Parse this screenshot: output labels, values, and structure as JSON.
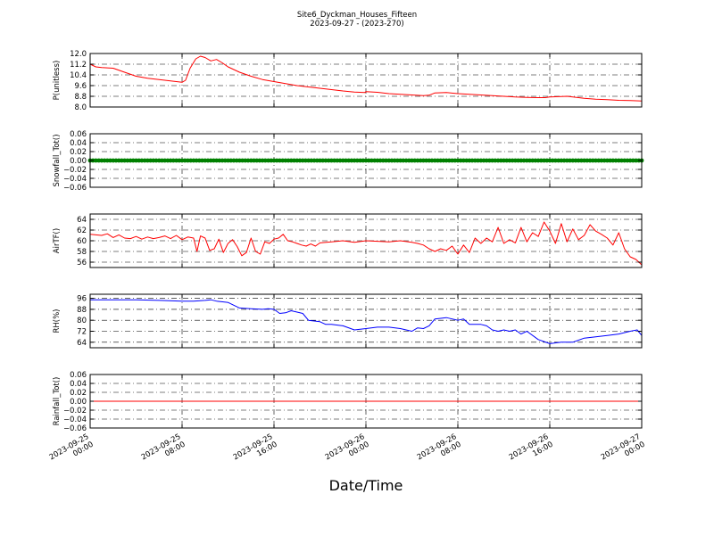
{
  "figure": {
    "title_line1": "Site6_Dyckman_Houses_Fifteen",
    "title_line2": "2023-09-27 - (2023-270)",
    "xlabel": "Date/Time",
    "x_tick_labels": [
      [
        "2023-09-25",
        "00:00"
      ],
      [
        "2023-09-25",
        "08:00"
      ],
      [
        "2023-09-25",
        "16:00"
      ],
      [
        "2023-09-26",
        "00:00"
      ],
      [
        "2023-09-26",
        "08:00"
      ],
      [
        "2023-09-26",
        "16:00"
      ],
      [
        "2023-09-27",
        "00:00"
      ]
    ]
  },
  "chart_data": [
    {
      "type": "line",
      "ylabel": "P(unitless)",
      "color": "#ff0000",
      "ylim": [
        8.0,
        12.0
      ],
      "yticks": [
        8.0,
        8.8,
        9.6,
        10.4,
        11.2,
        12.0
      ],
      "ytick_labels": [
        "8.0",
        "8.8",
        "9.6",
        "10.4",
        "11.2",
        "12.0"
      ],
      "xlim": [
        0,
        48
      ],
      "grid": true,
      "x": [
        0,
        0.5,
        1,
        2,
        3,
        4,
        5,
        6,
        7,
        8,
        8.3,
        8.7,
        9.2,
        9.6,
        10,
        10.5,
        11,
        11.5,
        12,
        13,
        14,
        15,
        16,
        17,
        18,
        19,
        20,
        21,
        22,
        23,
        23.9,
        24,
        25,
        26,
        27,
        28,
        29,
        29.5,
        30,
        31,
        32,
        33,
        34,
        35,
        36,
        37,
        38,
        39,
        39.6,
        40,
        41,
        41.5,
        42,
        43,
        44,
        45,
        46,
        47,
        48
      ],
      "y": [
        11.2,
        11.0,
        10.95,
        10.9,
        10.6,
        10.3,
        10.15,
        10.05,
        9.95,
        9.85,
        10.0,
        10.9,
        11.6,
        11.8,
        11.7,
        11.45,
        11.55,
        11.3,
        11.0,
        10.6,
        10.3,
        10.05,
        9.9,
        9.75,
        9.6,
        9.5,
        9.4,
        9.3,
        9.2,
        9.12,
        9.08,
        9.15,
        9.1,
        9.0,
        8.95,
        8.9,
        8.85,
        8.88,
        9.05,
        9.08,
        9.0,
        8.95,
        8.9,
        8.85,
        8.8,
        8.75,
        8.72,
        8.7,
        8.7,
        8.75,
        8.78,
        8.8,
        8.75,
        8.65,
        8.58,
        8.55,
        8.5,
        8.48,
        8.45
      ]
    },
    {
      "type": "scatter",
      "ylabel": "Snowfall_Tot()",
      "color": "#008000",
      "ylim": [
        -0.06,
        0.06
      ],
      "yticks": [
        -0.06,
        -0.04,
        -0.02,
        0.0,
        0.02,
        0.04,
        0.06
      ],
      "ytick_labels": [
        "−0.06",
        "−0.04",
        "−0.02",
        "0.00",
        "0.02",
        "0.04",
        "0.06"
      ],
      "xlim": [
        0,
        48
      ],
      "grid": true,
      "x_start": 0,
      "x_end": 48,
      "x_step": 0.25,
      "constant_value": 0.0
    },
    {
      "type": "line",
      "ylabel": "AirTF()",
      "color": "#ff0000",
      "ylim": [
        55,
        65
      ],
      "yticks": [
        56,
        58,
        60,
        62,
        64
      ],
      "ytick_labels": [
        "56",
        "58",
        "60",
        "62",
        "64"
      ],
      "xlim": [
        0,
        48
      ],
      "grid": true,
      "x": [
        0,
        1,
        1.5,
        2,
        2.5,
        3,
        3.5,
        4,
        4.5,
        5,
        5.5,
        6,
        6.5,
        7,
        7.5,
        8,
        8.5,
        9,
        9.3,
        9.6,
        10,
        10.4,
        10.8,
        11.2,
        11.6,
        12,
        12.4,
        12.8,
        13.2,
        13.6,
        14,
        14.4,
        14.8,
        15.2,
        15.6,
        16,
        16.4,
        16.8,
        17.2,
        17.6,
        18,
        18.4,
        18.8,
        19.2,
        19.6,
        20,
        21,
        22,
        23,
        24,
        25,
        26,
        27,
        28,
        28.5,
        29,
        29.5,
        30,
        30.5,
        31,
        31.5,
        32,
        32.5,
        33,
        33.5,
        34,
        34.5,
        35,
        35.5,
        36,
        36.5,
        37,
        37.5,
        38,
        38.5,
        39,
        39.5,
        40,
        40.5,
        41,
        41.5,
        42,
        42.5,
        43,
        43.5,
        44,
        44.5,
        45,
        45.5,
        46,
        46.5,
        47,
        47.5,
        48
      ],
      "y": [
        61.2,
        61.0,
        61.3,
        60.6,
        61.1,
        60.5,
        60.4,
        60.8,
        60.3,
        60.7,
        60.4,
        60.6,
        60.9,
        60.4,
        61.0,
        60.2,
        60.7,
        60.5,
        58.0,
        60.9,
        60.5,
        58.2,
        58.5,
        60.3,
        57.8,
        59.5,
        60.2,
        58.9,
        57.2,
        57.8,
        60.5,
        58.0,
        57.5,
        59.8,
        59.5,
        60.3,
        60.5,
        61.2,
        60.0,
        59.8,
        59.5,
        59.2,
        59.0,
        59.4,
        59.0,
        59.6,
        59.8,
        60.0,
        59.7,
        60.0,
        59.9,
        59.8,
        60.0,
        59.7,
        59.5,
        59.2,
        58.5,
        58.0,
        58.5,
        58.2,
        59.0,
        57.5,
        59.2,
        57.8,
        60.5,
        59.5,
        60.5,
        59.8,
        62.5,
        59.5,
        60.2,
        59.6,
        62.5,
        59.8,
        61.5,
        60.8,
        63.5,
        61.8,
        59.5,
        63.2,
        59.8,
        62.2,
        60.2,
        61.0,
        63.0,
        61.8,
        61.2,
        60.5,
        59.2,
        61.5,
        58.5,
        57.0,
        56.5,
        55.5
      ]
    },
    {
      "type": "line",
      "ylabel": "RH(%)",
      "color": "#0000ff",
      "ylim": [
        60,
        99
      ],
      "yticks": [
        64,
        72,
        80,
        88,
        96
      ],
      "ytick_labels": [
        "64",
        "72",
        "80",
        "88",
        "96"
      ],
      "xlim": [
        0,
        48
      ],
      "grid": true,
      "x": [
        0,
        2,
        4,
        6,
        8,
        9,
        10,
        10.5,
        11,
        12,
        12.5,
        13,
        14,
        15,
        15.5,
        16,
        16.5,
        17,
        17.5,
        18,
        18.5,
        19,
        20,
        20.5,
        21,
        22,
        23,
        24,
        25,
        26,
        27,
        28,
        28.5,
        29,
        29.5,
        30,
        31,
        31.5,
        32,
        32.5,
        33,
        34,
        34.5,
        35,
        35.5,
        36,
        36.5,
        37,
        37.5,
        38,
        39,
        40,
        41,
        42,
        43,
        44,
        45,
        46,
        47,
        47.6,
        48
      ],
      "y": [
        95,
        95,
        95,
        94.5,
        94,
        94,
        94.5,
        95,
        94,
        93,
        91,
        89,
        88.5,
        88,
        88.5,
        88,
        85,
        85.5,
        87,
        86,
        85,
        80,
        79,
        77,
        77,
        76,
        73,
        74,
        75,
        75,
        74,
        72,
        74.5,
        74,
        76,
        81,
        82,
        81,
        80,
        81,
        77,
        77,
        76,
        73,
        72,
        73,
        72,
        73,
        70,
        72,
        66,
        63,
        64,
        64,
        67,
        68,
        69,
        70,
        72,
        73,
        69
      ]
    },
    {
      "type": "line",
      "ylabel": "Rainfall_Tot()",
      "color": "#ff0000",
      "ylim": [
        -0.06,
        0.06
      ],
      "yticks": [
        -0.06,
        -0.04,
        -0.02,
        0.0,
        0.02,
        0.04,
        0.06
      ],
      "ytick_labels": [
        "−0.06",
        "−0.04",
        "−0.02",
        "0.00",
        "0.02",
        "0.04",
        "0.06"
      ],
      "xlim": [
        0,
        48
      ],
      "grid": true,
      "x": [
        0,
        48
      ],
      "y": [
        0.0,
        0.0
      ]
    }
  ]
}
